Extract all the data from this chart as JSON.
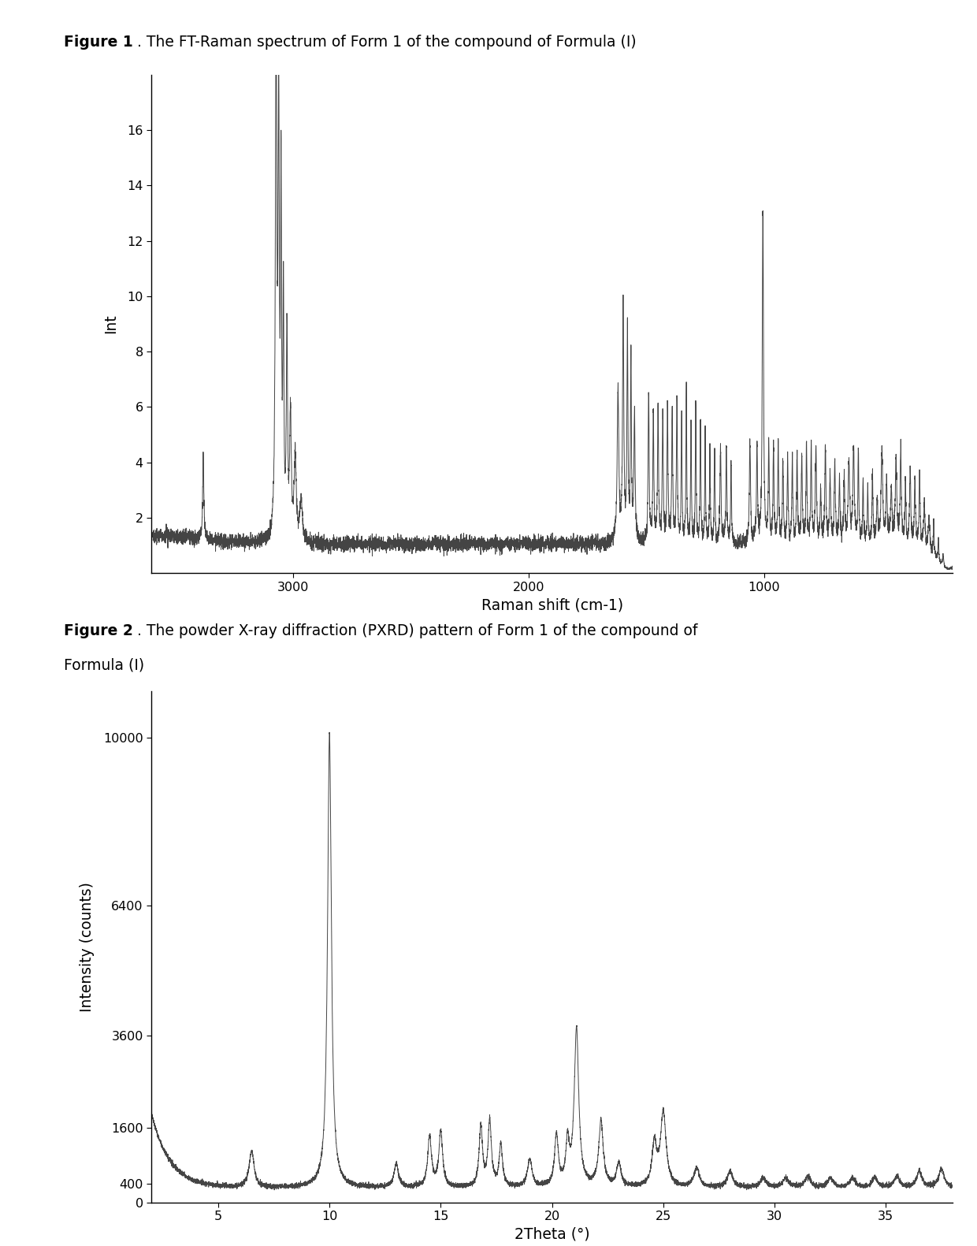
{
  "fig1_title_bold": "Figure 1",
  "fig1_title_rest": ". The FT-Raman spectrum of Form 1 of the compound of Formula (I)",
  "fig1_xlabel": "Raman shift (cm-1)",
  "fig1_ylabel": "Int",
  "fig1_xlim": [
    3600,
    200
  ],
  "fig1_ylim": [
    0,
    18
  ],
  "fig1_yticks": [
    2,
    4,
    6,
    8,
    10,
    12,
    14,
    16
  ],
  "fig1_xticks": [
    3000,
    2000,
    1000
  ],
  "fig2_title_bold": "Figure 2",
  "fig2_xlabel": "2Theta (°)",
  "fig2_ylabel": "Intensity (counts)",
  "fig2_xlim": [
    2,
    38
  ],
  "fig2_ylim": [
    0,
    11000
  ],
  "fig2_yticks": [
    0,
    400,
    1600,
    3600,
    6400,
    10000
  ],
  "fig2_ytick_labels": [
    "0",
    "400",
    "1600",
    "3600",
    "6400",
    "10000"
  ],
  "fig2_xticks": [
    5,
    10,
    15,
    20,
    25,
    30,
    35
  ],
  "line_color": "#444444",
  "line_width": 0.7,
  "background": "#ffffff"
}
